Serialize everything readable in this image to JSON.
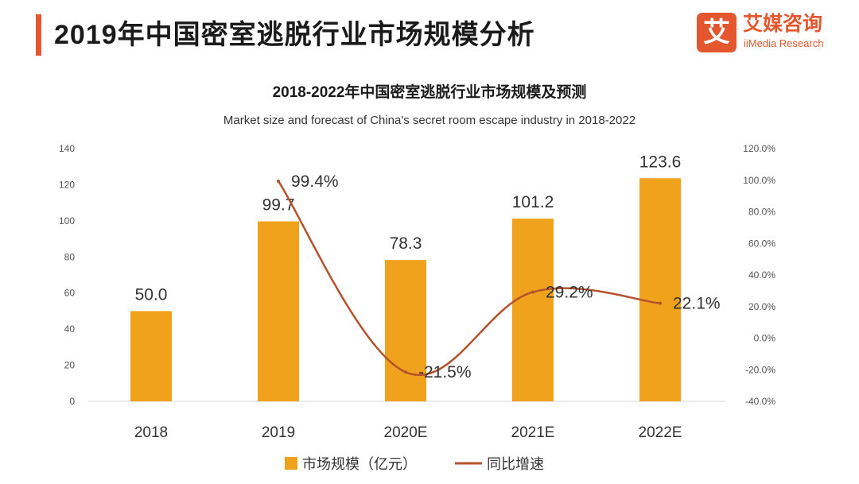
{
  "header": {
    "title": "2019年中国密室逃脱行业市场规模分析",
    "logo_mark": "艾",
    "logo_cn": "艾媒咨询",
    "logo_en": "iiMedia Research",
    "accent_color": "#e4572e"
  },
  "chart_data": {
    "type": "bar+line",
    "title": "2018-2022年中国密室逃脱行业市场规模及预测",
    "subtitle": "Market size and forecast of China's secret room escape industry in 2018-2022",
    "categories": [
      "2018",
      "2019",
      "2020E",
      "2021E",
      "2022E"
    ],
    "series": [
      {
        "name": "市场规模（亿元）",
        "type": "bar",
        "axis": "left",
        "values": [
          50.0,
          99.7,
          78.3,
          101.2,
          123.6
        ],
        "labels": [
          "50.0",
          "99.7",
          "78.3",
          "101.2",
          "123.6"
        ],
        "color": "#f0a21c"
      },
      {
        "name": "同比增速",
        "type": "line",
        "axis": "right",
        "values": [
          null,
          99.4,
          -21.5,
          29.2,
          22.1
        ],
        "labels": [
          "",
          "99.4%",
          "-21.5%",
          "29.2%",
          "22.1%"
        ],
        "color": "#b5522b"
      }
    ],
    "left_axis": {
      "min": 0,
      "max": 140,
      "ticks": [
        "0",
        "20",
        "40",
        "60",
        "80",
        "100",
        "120",
        "140"
      ]
    },
    "right_axis": {
      "min": -40,
      "max": 120,
      "ticks": [
        "-40.0%",
        "-20.0%",
        "0.0%",
        "20.0%",
        "40.0%",
        "60.0%",
        "80.0%",
        "100.0%",
        "120.0%"
      ]
    },
    "grid": false,
    "legend": {
      "position": "bottom",
      "items": [
        "市场规模（亿元）",
        "同比增速"
      ]
    }
  }
}
